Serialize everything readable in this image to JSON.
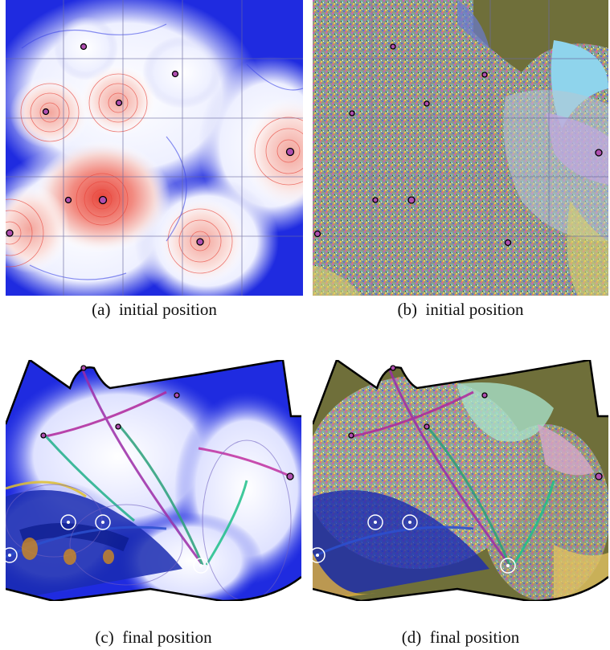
{
  "figure": {
    "subfigures": [
      {
        "id": "a",
        "label": "(a)",
        "caption": "initial position"
      },
      {
        "id": "b",
        "label": "(b)",
        "caption": "initial position"
      },
      {
        "id": "c",
        "label": "(c)",
        "caption": "final position"
      },
      {
        "id": "d",
        "label": "(d)",
        "caption": "final position"
      }
    ]
  },
  "colors": {
    "field_red": "#e8463c",
    "field_blue": "#1f2be0",
    "field_white": "#f4f4ff",
    "grid_line": "#6a6aa0",
    "marker_fill": "#b04fb0",
    "olive_bg": "#6f6f3a",
    "boundary": "#000000"
  }
}
